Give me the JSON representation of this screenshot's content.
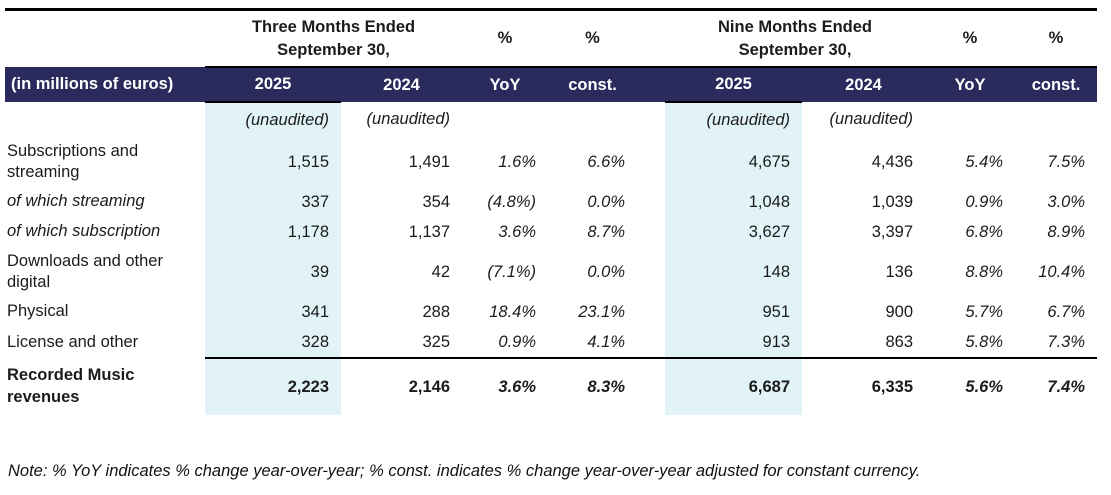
{
  "colors": {
    "header_band_bg": "#2B2A5C",
    "header_band_text": "#ffffff",
    "highlight_column_bg": "#E2F3F8",
    "rule_color": "#000000",
    "body_text": "#1b1b1b"
  },
  "header": {
    "row_label": "(in millions of euros)",
    "three_months": {
      "spanner_line1": "Three Months Ended",
      "spanner_line2": "September 30,",
      "pct_yoy": "%",
      "pct_const": "%"
    },
    "nine_months": {
      "spanner_line1": "Nine Months Ended",
      "spanner_line2": "September 30,",
      "pct_yoy": "%",
      "pct_const": "%"
    },
    "columns": {
      "y2025": "2025",
      "y2024": "2024",
      "yoy": "YoY",
      "const": "const."
    },
    "unaudited": "(unaudited)"
  },
  "rows": [
    {
      "label": "Subscriptions and streaming",
      "tm": [
        "1,515",
        "1,491",
        "1.6%",
        "6.6%"
      ],
      "nm": [
        "4,675",
        "4,436",
        "5.4%",
        "7.5%"
      ]
    },
    {
      "label": "of which streaming",
      "tm": [
        "337",
        "354",
        "(4.8%)",
        "0.0%"
      ],
      "nm": [
        "1,048",
        "1,039",
        "0.9%",
        "3.0%"
      ]
    },
    {
      "label": "of which subscription",
      "tm": [
        "1,178",
        "1,137",
        "3.6%",
        "8.7%"
      ],
      "nm": [
        "3,627",
        "3,397",
        "6.8%",
        "8.9%"
      ]
    },
    {
      "label": "Downloads and other digital",
      "tm": [
        "39",
        "42",
        "(7.1%)",
        "0.0%"
      ],
      "nm": [
        "148",
        "136",
        "8.8%",
        "10.4%"
      ]
    },
    {
      "label": "Physical",
      "tm": [
        "341",
        "288",
        "18.4%",
        "23.1%"
      ],
      "nm": [
        "951",
        "900",
        "5.7%",
        "6.7%"
      ]
    },
    {
      "label": "License and other",
      "tm": [
        "328",
        "325",
        "0.9%",
        "4.1%"
      ],
      "nm": [
        "913",
        "863",
        "5.8%",
        "7.3%"
      ]
    }
  ],
  "total": {
    "label": "Recorded Music revenues",
    "tm": [
      "2,223",
      "2,146",
      "3.6%",
      "8.3%"
    ],
    "nm": [
      "6,687",
      "6,335",
      "5.6%",
      "7.4%"
    ]
  },
  "note": "Note: % YoY indicates % change year-over-year; % const. indicates % change year-over-year adjusted for constant currency."
}
